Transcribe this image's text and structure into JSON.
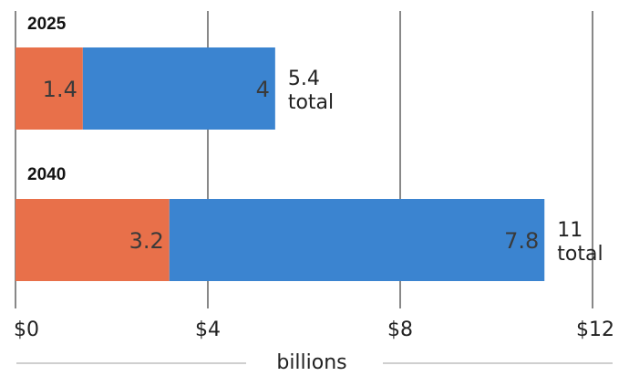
{
  "chart_data": {
    "type": "bar",
    "orientation": "horizontal",
    "stacked": true,
    "categories": [
      "2025",
      "2040"
    ],
    "series": [
      {
        "values": [
          1.4,
          3.2
        ],
        "labels": [
          "1.4",
          "3.2"
        ],
        "color": "#e8704a"
      },
      {
        "values": [
          4,
          7.8
        ],
        "labels": [
          "4",
          "7.8"
        ],
        "color": "#3b84d0"
      }
    ],
    "totals": [
      {
        "value": "5.4",
        "word": "total"
      },
      {
        "value": "11",
        "word": "total"
      }
    ],
    "xlim": [
      0,
      12
    ],
    "x_ticks": [
      0,
      4,
      8,
      12
    ],
    "x_tick_labels": [
      "$0",
      "$4",
      "$8",
      "$12"
    ],
    "xlabel": "billions",
    "grid": true
  }
}
